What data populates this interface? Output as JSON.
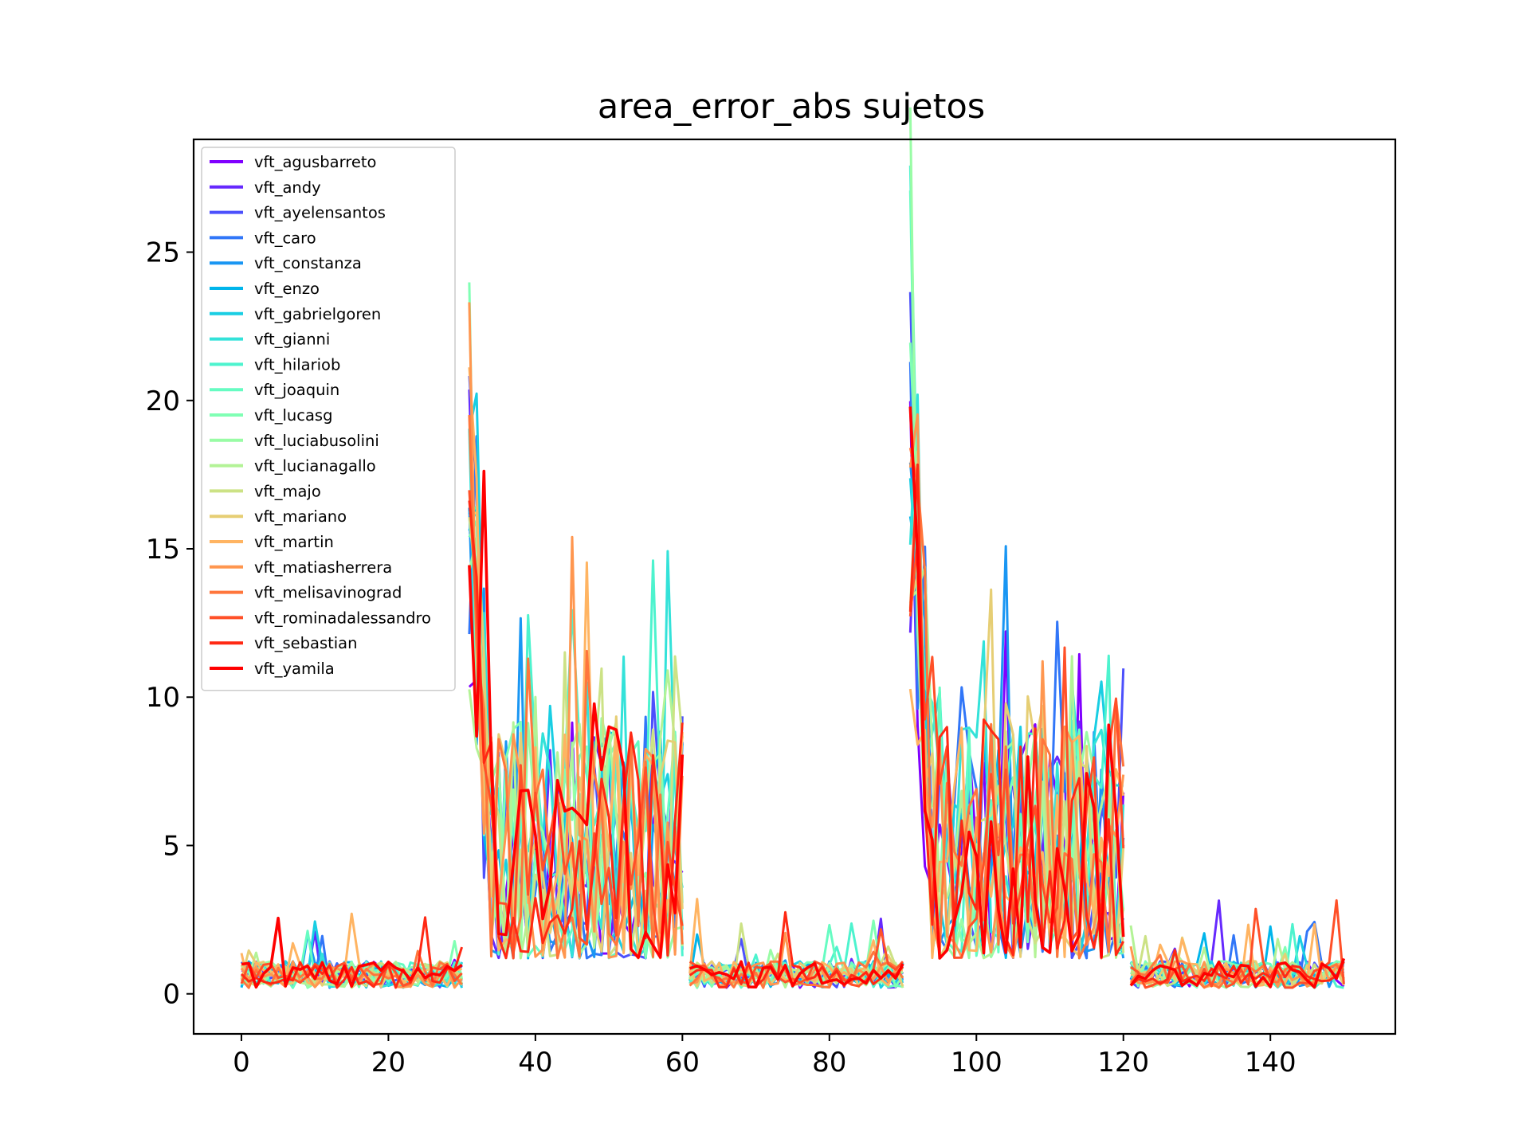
{
  "chart_data": {
    "type": "line",
    "title": "area_error_abs sujetos",
    "xlabel": "",
    "ylabel": "",
    "xlim": [
      -6.5,
      157
    ],
    "ylim": [
      -1.35,
      28.8
    ],
    "xticks": [
      0,
      20,
      40,
      60,
      80,
      100,
      120,
      140
    ],
    "yticks": [
      0,
      5,
      10,
      15,
      20,
      25
    ],
    "grid": false,
    "legend_position": "top-left",
    "series": [
      {
        "name": "vft_agusbarreto",
        "color": "#8000ff"
      },
      {
        "name": "vft_andy",
        "color": "#6629fe"
      },
      {
        "name": "vft_ayelensantos",
        "color": "#4c50fc"
      },
      {
        "name": "vft_caro",
        "color": "#3176f8"
      },
      {
        "name": "vft_constanza",
        "color": "#1996f3"
      },
      {
        "name": "vft_enzo",
        "color": "#00b5eb"
      },
      {
        "name": "vft_gabrielgoren",
        "color": "#19cee3"
      },
      {
        "name": "vft_gianni",
        "color": "#33e2d9"
      },
      {
        "name": "vft_hilariob",
        "color": "#4df3ce"
      },
      {
        "name": "vft_joaquin",
        "color": "#66fcc2"
      },
      {
        "name": "vft_lucasg",
        "color": "#80ffb4"
      },
      {
        "name": "vft_luciabusolini",
        "color": "#99fca5"
      },
      {
        "name": "vft_lucianagallo",
        "color": "#b3f396"
      },
      {
        "name": "vft_majo",
        "color": "#cce285"
      },
      {
        "name": "vft_mariano",
        "color": "#e6ce74"
      },
      {
        "name": "vft_martin",
        "color": "#ffb462"
      },
      {
        "name": "vft_matiasherrera",
        "color": "#ff964f"
      },
      {
        "name": "vft_melisavinograd",
        "color": "#ff763c"
      },
      {
        "name": "vft_rominadalessandro",
        "color": "#ff5028"
      },
      {
        "name": "vft_sebastian",
        "color": "#ff2914"
      },
      {
        "name": "vft_yamila",
        "color": "#ff0000"
      }
    ],
    "note_phases": [
      {
        "x_range": [
          0,
          30
        ],
        "level": "low"
      },
      {
        "x_range": [
          31,
          60
        ],
        "level": "high"
      },
      {
        "x_range": [
          61,
          90
        ],
        "level": "low"
      },
      {
        "x_range": [
          91,
          120
        ],
        "level": "high"
      },
      {
        "x_range": [
          121,
          150
        ],
        "level": "low"
      }
    ]
  }
}
